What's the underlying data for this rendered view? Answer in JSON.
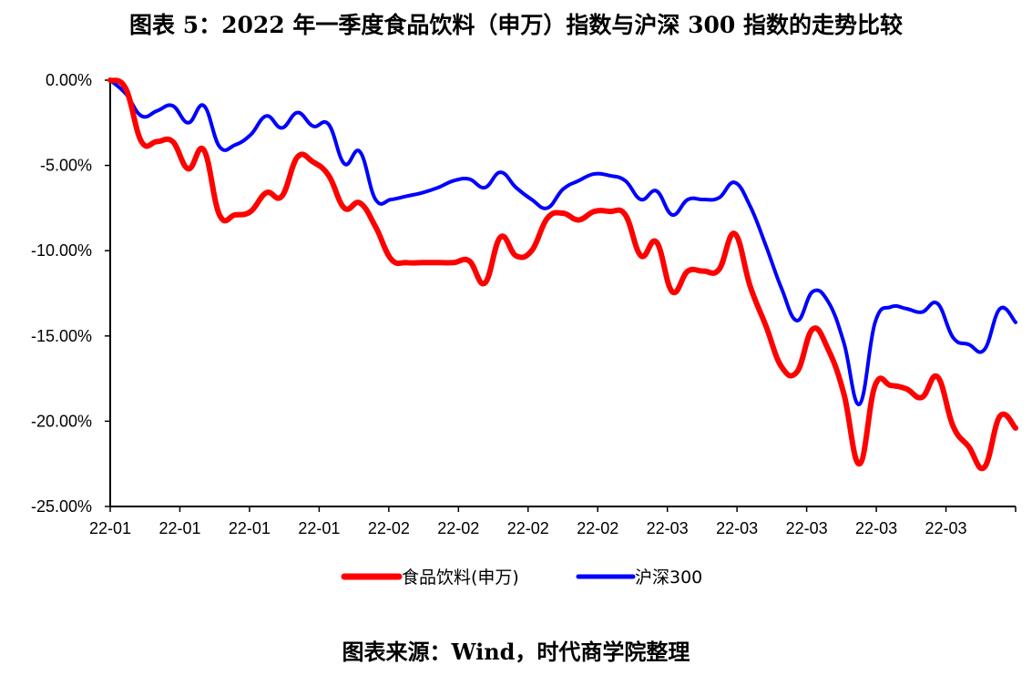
{
  "page": {
    "title": "图表 5：2022 年一季度食品饮料（申万）指数与沪深 300 指数的走势比较",
    "source": "图表来源：Wind，时代商学院整理"
  },
  "chart_data": {
    "type": "line",
    "title": "图表 5：2022 年一季度食品饮料（申万）指数与沪深 300 指数的走势比较",
    "xlabel": "",
    "ylabel": "",
    "ylim": [
      -25,
      0
    ],
    "y_ticks": [
      0,
      -5,
      -10,
      -15,
      -20,
      -25
    ],
    "y_tick_labels": [
      "0.00%",
      "-5.00%",
      "-10.00%",
      "-15.00%",
      "-20.00%",
      "-25.00%"
    ],
    "x_tick_labels": [
      "22-01",
      "22-01",
      "22-01",
      "22-01",
      "22-02",
      "22-02",
      "22-02",
      "22-02",
      "22-03",
      "22-03",
      "22-03",
      "22-03",
      "22-03"
    ],
    "grid": false,
    "legend_position": "bottom",
    "x": [
      0,
      1,
      2,
      3,
      4,
      5,
      6,
      7,
      8,
      9,
      10,
      11,
      12,
      13,
      14,
      15,
      16,
      17,
      18,
      19,
      20,
      21,
      22,
      23,
      24,
      25,
      26,
      27,
      28,
      29,
      30,
      31,
      32,
      33,
      34,
      35,
      36,
      37,
      38,
      39,
      40,
      41,
      42,
      43,
      44,
      45,
      46,
      47,
      48,
      49,
      50,
      51,
      52,
      53,
      54,
      55,
      56,
      57,
      58
    ],
    "series": [
      {
        "name": "食品饮料(申万)",
        "color": "#ff0000",
        "values": [
          0.0,
          -0.5,
          -3.6,
          -3.6,
          -3.6,
          -5.2,
          -4.1,
          -7.9,
          -7.9,
          -7.7,
          -6.6,
          -6.8,
          -4.5,
          -4.8,
          -5.6,
          -7.5,
          -7.2,
          -8.6,
          -10.5,
          -10.7,
          -10.7,
          -10.7,
          -10.7,
          -10.6,
          -11.9,
          -9.2,
          -10.3,
          -10.0,
          -8.1,
          -7.8,
          -8.2,
          -7.7,
          -7.7,
          -7.9,
          -10.3,
          -9.5,
          -12.4,
          -11.2,
          -11.2,
          -11.1,
          -9.0,
          -12.1,
          -14.4,
          -16.8,
          -17.1,
          -14.6,
          -15.8,
          -18.4,
          -22.5,
          -17.9,
          -17.9,
          -18.1,
          -18.6,
          -17.4,
          -20.3,
          -21.5,
          -22.7,
          -19.7,
          -20.4
        ]
      },
      {
        "name": "沪深300",
        "color": "#0000ff",
        "values": [
          0.0,
          -0.8,
          -2.1,
          -1.8,
          -1.5,
          -2.5,
          -1.5,
          -3.9,
          -3.8,
          -3.2,
          -2.1,
          -2.8,
          -1.9,
          -2.7,
          -2.6,
          -4.9,
          -4.2,
          -7.0,
          -7.0,
          -6.8,
          -6.6,
          -6.3,
          -5.9,
          -5.8,
          -6.3,
          -5.4,
          -6.3,
          -7.0,
          -7.5,
          -6.4,
          -5.9,
          -5.5,
          -5.6,
          -5.9,
          -7.0,
          -6.5,
          -7.9,
          -7.0,
          -7.0,
          -6.9,
          -6.0,
          -7.4,
          -9.7,
          -12.2,
          -14.1,
          -12.4,
          -13.0,
          -15.4,
          -19.0,
          -14.2,
          -13.3,
          -13.4,
          -13.6,
          -13.1,
          -15.1,
          -15.5,
          -15.8,
          -13.4,
          -14.2
        ]
      }
    ]
  }
}
